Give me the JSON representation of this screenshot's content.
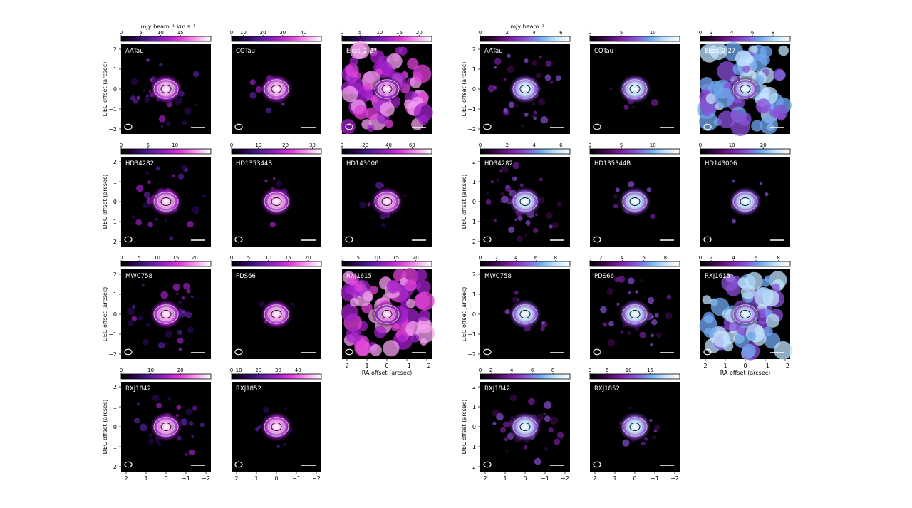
{
  "panels": [
    {
      "unit_label": "mJy beam⁻¹ km s⁻¹",
      "cmap": "magenta",
      "rows": [
        [
          {
            "name": "AATau",
            "ticks": [
              "0",
              "5",
              "10",
              "15"
            ],
            "tickfrac": [
              0,
              0.22,
              0.44,
              0.66
            ],
            "emission": "compact-noisy"
          },
          {
            "name": "CQTau",
            "ticks": [
              "0",
              "10",
              "20",
              "30",
              "40"
            ],
            "tickfrac": [
              0,
              0.13,
              0.35,
              0.57,
              0.8
            ],
            "emission": "compact"
          },
          {
            "name": "Elias_2-27",
            "ticks": [
              "0",
              "5",
              "10",
              "15",
              "20"
            ],
            "tickfrac": [
              0,
              0.2,
              0.42,
              0.64,
              0.86
            ],
            "emission": "extended"
          }
        ],
        [
          {
            "name": "HD34282",
            "ticks": [
              "0",
              "5",
              "10"
            ],
            "tickfrac": [
              0,
              0.3,
              0.6
            ],
            "emission": "compact-noisy"
          },
          {
            "name": "HD135344B",
            "ticks": [
              "0",
              "10",
              "20",
              "30"
            ],
            "tickfrac": [
              0,
              0.3,
              0.6,
              0.9
            ],
            "emission": "compact"
          },
          {
            "name": "HD143006",
            "ticks": [
              "0",
              "20",
              "40",
              "60"
            ],
            "tickfrac": [
              0,
              0.26,
              0.52,
              0.78
            ],
            "emission": "compact"
          }
        ],
        [
          {
            "name": "MWC758",
            "ticks": [
              "0",
              "5",
              "10",
              "15",
              "20"
            ],
            "tickfrac": [
              0,
              0.2,
              0.4,
              0.61,
              0.82
            ],
            "emission": "compact-noisy"
          },
          {
            "name": "PDS66",
            "ticks": [
              "0",
              "5",
              "10",
              "15",
              "20"
            ],
            "tickfrac": [
              0,
              0.19,
              0.41,
              0.63,
              0.85
            ],
            "emission": "compact"
          },
          {
            "name": "RXJ1615",
            "ticks": [
              "0",
              "5",
              "10",
              "15",
              "20"
            ],
            "tickfrac": [
              0,
              0.18,
              0.39,
              0.6,
              0.82
            ],
            "emission": "extended"
          }
        ],
        [
          {
            "name": "RXJ1842",
            "ticks": [
              "0",
              "10",
              "20"
            ],
            "tickfrac": [
              0,
              0.33,
              0.66
            ],
            "emission": "compact-noisy"
          },
          {
            "name": "RXJ1852",
            "ticks": [
              "0",
              "10",
              "20",
              "30",
              "40"
            ],
            "tickfrac": [
              0,
              0.08,
              0.3,
              0.52,
              0.74
            ],
            "emission": "compact"
          }
        ]
      ]
    },
    {
      "unit_label": "mJy beam⁻¹",
      "cmap": "blue",
      "rows": [
        [
          {
            "name": "AATau",
            "ticks": [
              "0",
              "2",
              "4",
              "6"
            ],
            "tickfrac": [
              0,
              0.3,
              0.6,
              0.9
            ],
            "emission": "compact-noisy"
          },
          {
            "name": "CQTau",
            "ticks": [
              "0",
              "5",
              "10"
            ],
            "tickfrac": [
              0,
              0.35,
              0.7
            ],
            "emission": "compact"
          },
          {
            "name": "Elias_2-27",
            "ticks": [
              "0",
              "2",
              "4",
              "6",
              "8"
            ],
            "tickfrac": [
              0,
              0.12,
              0.35,
              0.58,
              0.81
            ],
            "emission": "extended"
          }
        ],
        [
          {
            "name": "HD34282",
            "ticks": [
              "0",
              "2",
              "4",
              "6"
            ],
            "tickfrac": [
              0,
              0.3,
              0.6,
              0.9
            ],
            "emission": "compact-noisy"
          },
          {
            "name": "HD135344B",
            "ticks": [
              "0",
              "5",
              "10"
            ],
            "tickfrac": [
              0,
              0.35,
              0.7
            ],
            "emission": "compact"
          },
          {
            "name": "HD143006",
            "ticks": [
              "0",
              "10",
              "20"
            ],
            "tickfrac": [
              0,
              0.35,
              0.7
            ],
            "emission": "compact"
          }
        ],
        [
          {
            "name": "MWC758",
            "ticks": [
              "0",
              "2",
              "4",
              "6",
              "8"
            ],
            "tickfrac": [
              0,
              0.18,
              0.4,
              0.62,
              0.84
            ],
            "emission": "compact"
          },
          {
            "name": "PDS66",
            "ticks": [
              "0",
              "2",
              "4",
              "6",
              "8"
            ],
            "tickfrac": [
              0,
              0.12,
              0.36,
              0.6,
              0.84
            ],
            "emission": "compact-noisy"
          },
          {
            "name": "RXJ1615",
            "ticks": [
              "0",
              "2",
              "4",
              "6",
              "8"
            ],
            "tickfrac": [
              0,
              0.12,
              0.37,
              0.62,
              0.87
            ],
            "emission": "extended"
          }
        ],
        [
          {
            "name": "RXJ1842",
            "ticks": [
              "0",
              "2",
              "4",
              "6",
              "8"
            ],
            "tickfrac": [
              0,
              0.12,
              0.35,
              0.58,
              0.81
            ],
            "emission": "compact-noisy"
          },
          {
            "name": "RXJ1852",
            "ticks": [
              "0",
              "5",
              "10",
              "15"
            ],
            "tickfrac": [
              0,
              0.19,
              0.43,
              0.67
            ],
            "emission": "compact"
          }
        ]
      ]
    }
  ],
  "axes": {
    "ylabel": "DEC offset (arcsec)",
    "xlabel": "RA offset (arcsec)",
    "yticks": [
      "2",
      "1",
      "0",
      "−1",
      "−2"
    ],
    "xticks": [
      "2",
      "1",
      "0",
      "−1",
      "−2"
    ]
  },
  "colors": {
    "magenta": [
      "#000000",
      "#2a0854",
      "#5a1fa0",
      "#a020c8",
      "#e040d8",
      "#f4a0f0",
      "#ffffff"
    ],
    "blue": [
      "#000000",
      "#3a0848",
      "#7a1ea0",
      "#8a50d8",
      "#70a8f0",
      "#c0e4ff",
      "#ffffff"
    ]
  }
}
